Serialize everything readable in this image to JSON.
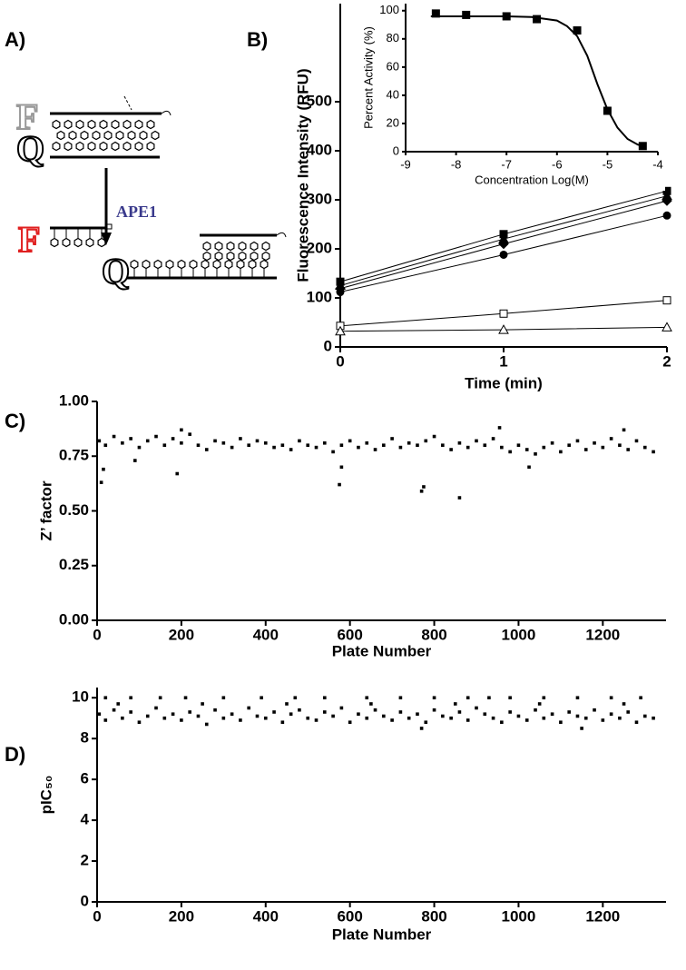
{
  "panel_labels": [
    "A)",
    "B)",
    "C)",
    "D)"
  ],
  "diagram": {
    "labels": [
      "F",
      "Q",
      "APE1",
      "F",
      "Q"
    ]
  },
  "chart_data": [
    {
      "type": "line",
      "xlabel": "Time (min)",
      "ylabel": "Fluorescence Intensity (RFU)",
      "x": [
        0,
        1,
        2
      ],
      "xlim": [
        0,
        2
      ],
      "xticks": [
        0,
        1,
        2
      ],
      "ylim": [
        0,
        700
      ],
      "yticks": [
        0,
        100,
        200,
        300,
        400,
        500
      ],
      "series": [
        {
          "color": "#000000",
          "marker": "square",
          "line": true,
          "values": [
            133,
            230,
            318
          ]
        },
        {
          "color": "#000000",
          "marker": "triangle",
          "line": true,
          "values": [
            125,
            220,
            308
          ]
        },
        {
          "color": "#000000",
          "marker": "diamond",
          "line": true,
          "values": [
            119,
            210,
            298
          ]
        },
        {
          "color": "#000000",
          "marker": "circle",
          "line": true,
          "values": [
            112,
            188,
            268
          ]
        },
        {
          "color": "#000000",
          "marker": "open-square",
          "line": true,
          "values": [
            43,
            68,
            95
          ]
        },
        {
          "color": "#000000",
          "marker": "open-triangle",
          "line": true,
          "values": [
            32,
            35,
            40
          ]
        }
      ]
    },
    {
      "type": "line",
      "xlabel": "Concentration Log(M)",
      "ylabel": "Percent Activity (%)",
      "xlim": [
        -9,
        -4
      ],
      "xticks": [
        -9,
        -8,
        -7,
        -6,
        -5,
        -4
      ],
      "ylim": [
        0,
        105
      ],
      "yticks": [
        0,
        20,
        40,
        60,
        80,
        100
      ],
      "series": [
        {
          "color": "#000000",
          "marker": "square",
          "line": false,
          "x": [
            -8.4,
            -7.8,
            -7.0,
            -6.4,
            -5.6,
            -5.0,
            -4.3
          ],
          "values": [
            98,
            97,
            96,
            94,
            86,
            29,
            4
          ]
        },
        {
          "color": "#000000",
          "line": true,
          "x": [
            -8.5,
            -8,
            -7,
            -6.5,
            -6,
            -5.8,
            -5.6,
            -5.4,
            -5.2,
            -5.0,
            -4.8,
            -4.6,
            -4.4,
            -4.3
          ],
          "values": [
            96,
            96,
            96,
            95.5,
            93,
            89,
            82,
            68,
            48,
            30,
            17,
            9,
            5,
            4
          ]
        }
      ]
    },
    {
      "type": "scatter",
      "xlabel": "Plate Number",
      "ylabel": "Z’ factor",
      "xlim": [
        0,
        1350
      ],
      "xticks": [
        0,
        200,
        400,
        600,
        800,
        1000,
        1200
      ],
      "ylim": [
        0,
        1
      ],
      "yticks": [
        {
          "value": 0,
          "label": "0.00"
        },
        {
          "value": 0.25,
          "label": "0.25"
        },
        {
          "value": 0.5,
          "label": "0.50"
        },
        {
          "value": 0.75,
          "label": "0.75"
        },
        {
          "value": 1,
          "label": "1.00"
        }
      ],
      "series": [
        {
          "color": "#000000",
          "marker": "dot",
          "x": [
            5,
            20,
            40,
            60,
            80,
            100,
            120,
            140,
            160,
            180,
            200,
            220,
            240,
            260,
            280,
            300,
            320,
            340,
            360,
            380,
            400,
            420,
            440,
            460,
            480,
            500,
            520,
            540,
            560,
            580,
            600,
            620,
            640,
            660,
            680,
            700,
            720,
            740,
            760,
            780,
            800,
            820,
            840,
            860,
            880,
            900,
            920,
            940,
            960,
            980,
            1000,
            1020,
            1040,
            1060,
            1080,
            1100,
            1120,
            1140,
            1160,
            1180,
            1200,
            1220,
            1240,
            1260,
            1280,
            1300,
            1320,
            10,
            15,
            90,
            190,
            200,
            575,
            580,
            770,
            775,
            860,
            955,
            1025,
            1250
          ],
          "values": [
            0.82,
            0.8,
            0.84,
            0.81,
            0.83,
            0.79,
            0.82,
            0.84,
            0.8,
            0.83,
            0.81,
            0.85,
            0.8,
            0.78,
            0.82,
            0.81,
            0.79,
            0.83,
            0.8,
            0.82,
            0.81,
            0.79,
            0.8,
            0.78,
            0.82,
            0.8,
            0.79,
            0.81,
            0.77,
            0.8,
            0.82,
            0.79,
            0.81,
            0.78,
            0.8,
            0.83,
            0.79,
            0.81,
            0.8,
            0.82,
            0.84,
            0.8,
            0.78,
            0.81,
            0.79,
            0.82,
            0.8,
            0.83,
            0.79,
            0.77,
            0.8,
            0.78,
            0.76,
            0.79,
            0.81,
            0.77,
            0.8,
            0.82,
            0.78,
            0.81,
            0.79,
            0.83,
            0.8,
            0.78,
            0.82,
            0.79,
            0.77,
            0.63,
            0.69,
            0.73,
            0.67,
            0.87,
            0.62,
            0.7,
            0.59,
            0.61,
            0.56,
            0.88,
            0.7,
            0.87
          ]
        }
      ]
    },
    {
      "type": "scatter",
      "xlabel": "Plate Number",
      "ylabel": "pIC₅₀",
      "xlim": [
        0,
        1350
      ],
      "xticks": [
        0,
        200,
        400,
        600,
        800,
        1000,
        1200
      ],
      "ylim": [
        0,
        10.5
      ],
      "yticks": [
        0,
        2,
        4,
        6,
        8,
        10
      ],
      "series": [
        {
          "color": "#000000",
          "marker": "dot",
          "x": [
            5,
            20,
            40,
            60,
            80,
            100,
            120,
            140,
            160,
            180,
            200,
            220,
            240,
            260,
            280,
            300,
            320,
            340,
            360,
            380,
            400,
            420,
            440,
            460,
            480,
            500,
            520,
            540,
            560,
            580,
            600,
            620,
            640,
            660,
            680,
            700,
            720,
            740,
            760,
            780,
            800,
            820,
            840,
            860,
            880,
            900,
            920,
            940,
            960,
            980,
            1000,
            1020,
            1040,
            1060,
            1080,
            1100,
            1120,
            1140,
            1160,
            1180,
            1200,
            1220,
            1240,
            1260,
            1280,
            1300,
            1320,
            20,
            80,
            150,
            210,
            300,
            390,
            470,
            540,
            640,
            720,
            800,
            880,
            930,
            980,
            1060,
            1140,
            1220,
            1290,
            50,
            250,
            450,
            650,
            850,
            1050,
            1250,
            770,
            1150
          ],
          "values": [
            9.2,
            8.9,
            9.4,
            9.0,
            9.3,
            8.8,
            9.1,
            9.5,
            9.0,
            9.2,
            8.9,
            9.3,
            9.1,
            8.7,
            9.4,
            9.0,
            9.2,
            8.9,
            9.5,
            9.1,
            9.0,
            9.3,
            8.8,
            9.2,
            9.4,
            9.0,
            8.9,
            9.3,
            9.1,
            9.5,
            8.8,
            9.2,
            9.0,
            9.4,
            9.1,
            8.9,
            9.3,
            9.0,
            9.2,
            8.8,
            9.4,
            9.1,
            9.0,
            9.3,
            8.9,
            9.5,
            9.2,
            9.0,
            8.8,
            9.3,
            9.1,
            8.9,
            9.4,
            9.0,
            9.2,
            8.8,
            9.3,
            9.1,
            9.0,
            9.4,
            8.9,
            9.2,
            9.0,
            9.3,
            8.8,
            9.1,
            9.0,
            10,
            10,
            10,
            10,
            10,
            10,
            10,
            10,
            10,
            10,
            10,
            10,
            10,
            10,
            10,
            10,
            10,
            10,
            9.7,
            9.7,
            9.7,
            9.7,
            9.7,
            9.7,
            9.7,
            8.5,
            8.5
          ]
        }
      ]
    }
  ]
}
